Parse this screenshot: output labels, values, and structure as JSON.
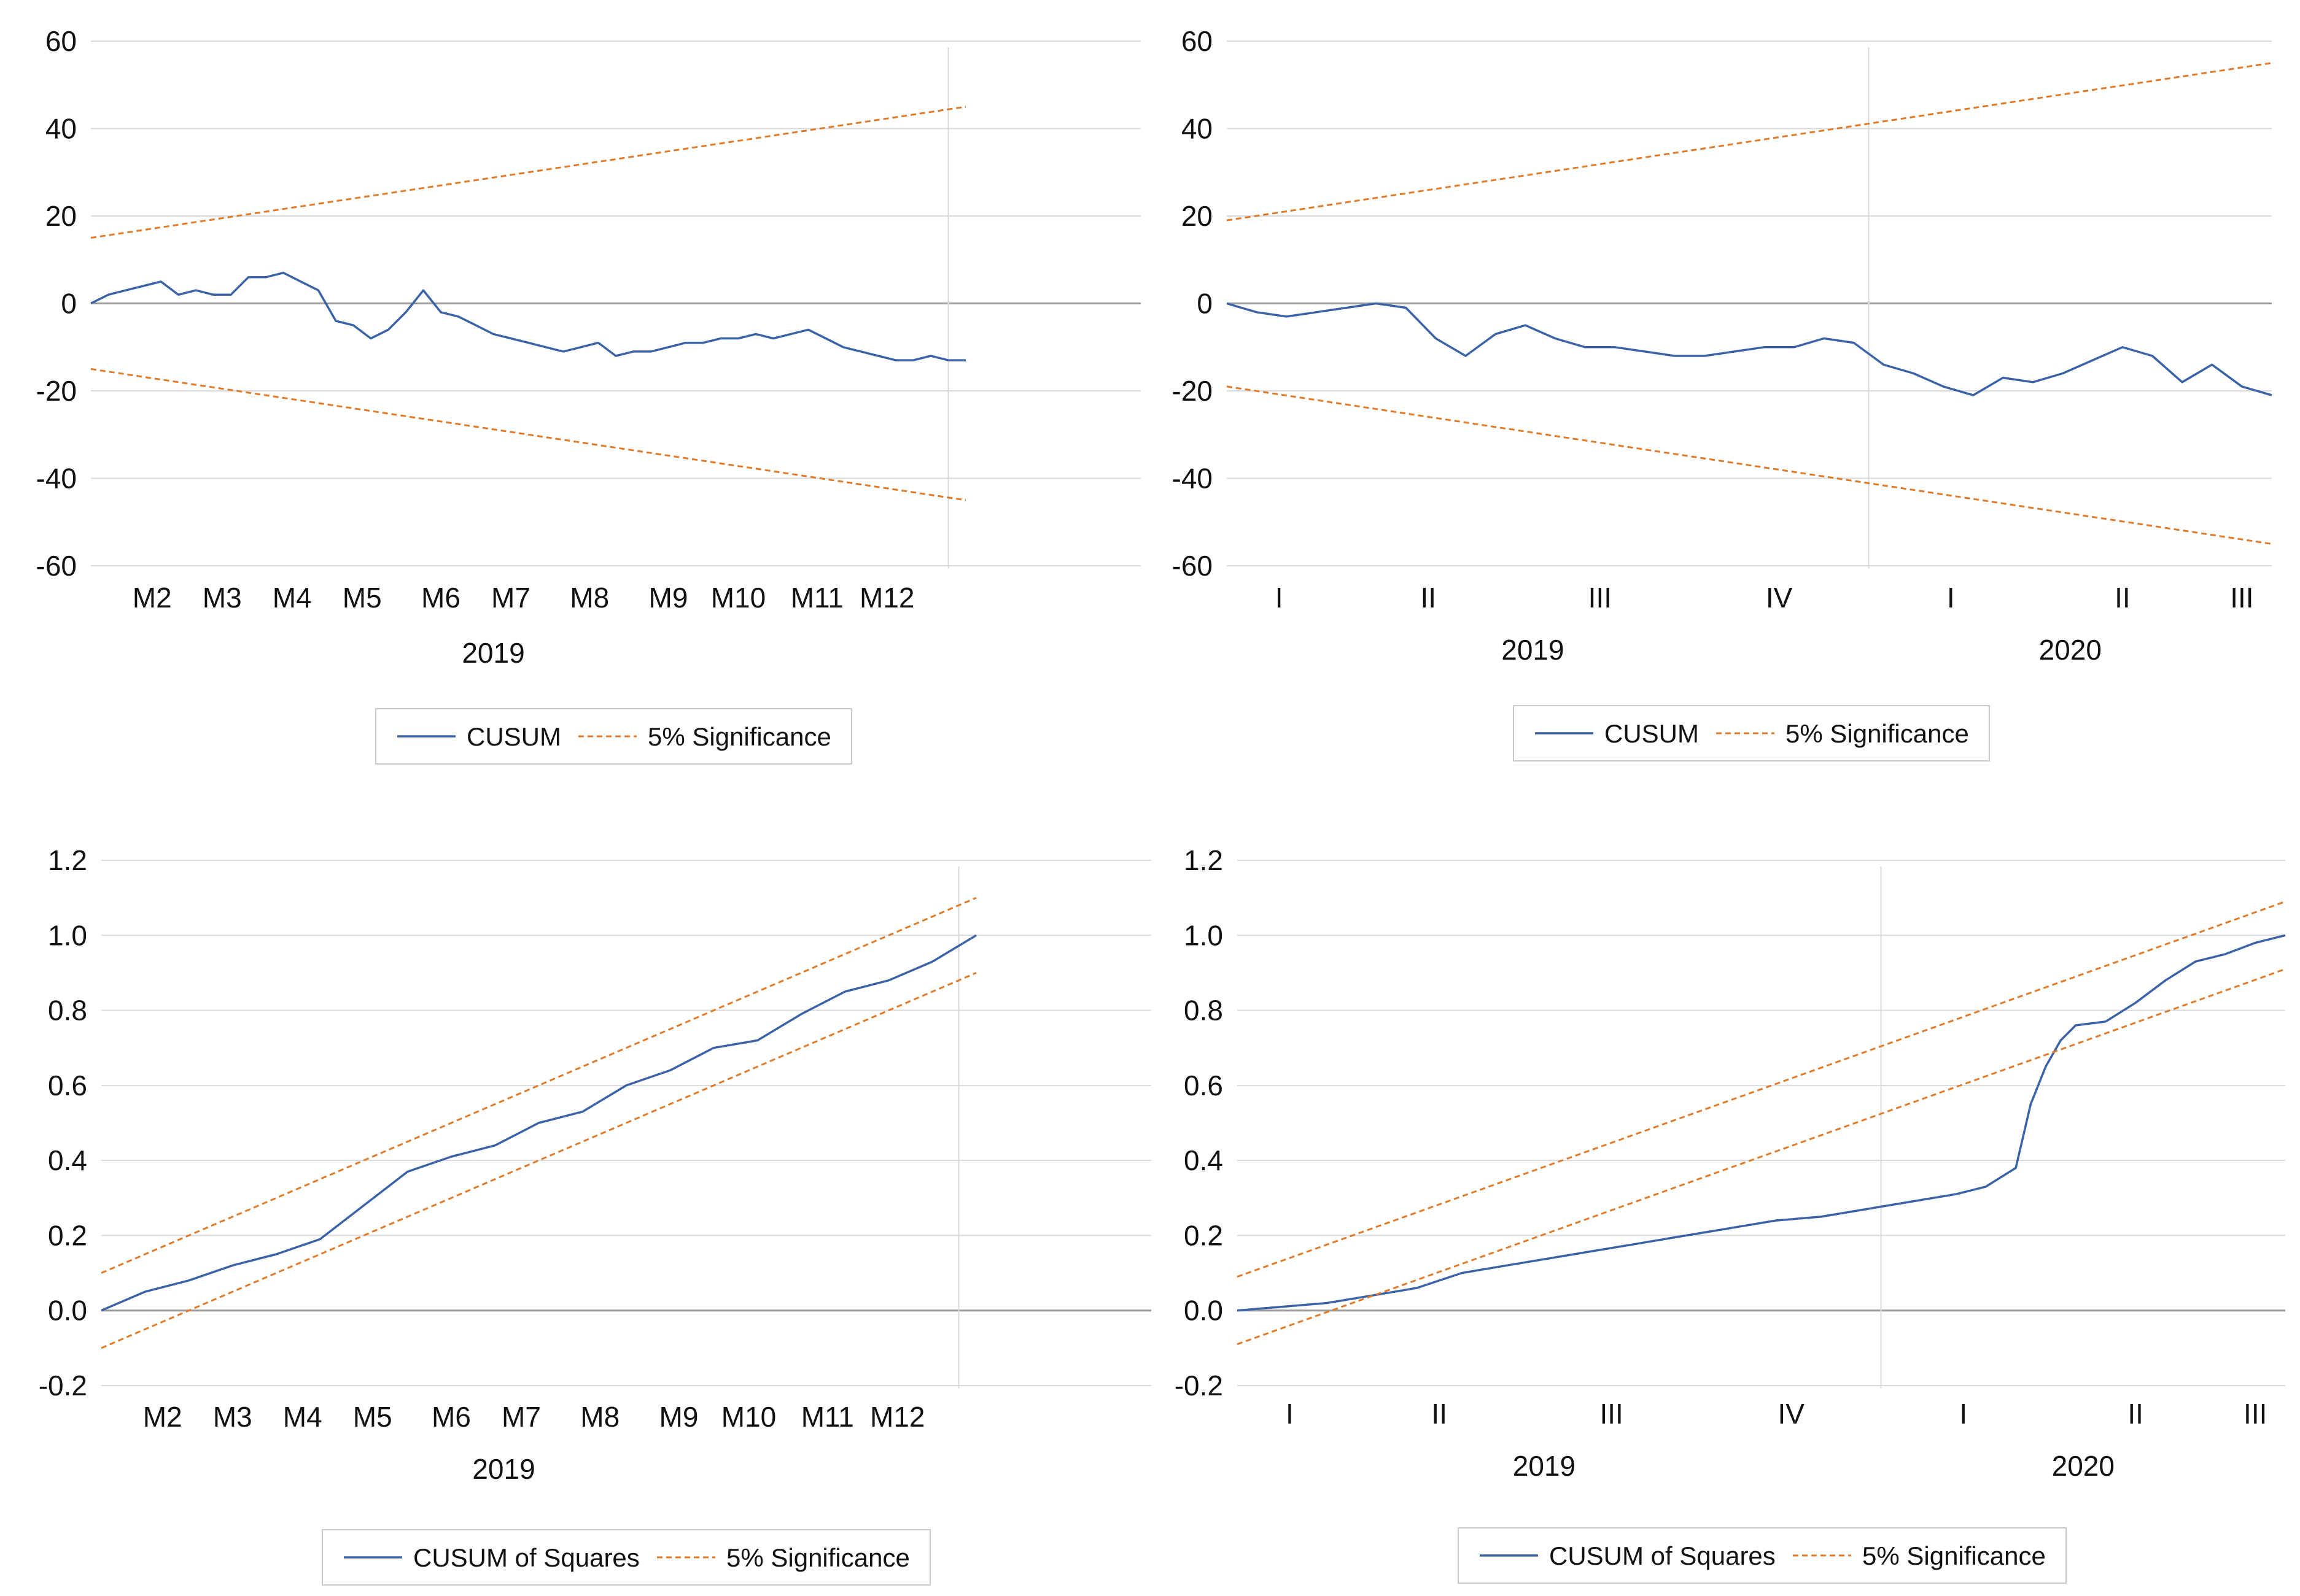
{
  "colors": {
    "cusum": "#3a62a7",
    "bounds": "#e07b2a",
    "grid": "#d9d9d9",
    "zero": "#9a9a9a",
    "legend_border": "#c8c8c8",
    "text": "#111111"
  },
  "chart_data": [
    {
      "type": "line",
      "ylim": [
        -60,
        60
      ],
      "yticks": [
        "60",
        "40",
        "20",
        "0",
        "-20",
        "-40",
        "-60"
      ],
      "ytick_values": [
        60,
        40,
        20,
        0,
        -20,
        -40,
        -60
      ],
      "xlim": [
        0,
        12
      ],
      "xticks": [
        "M2",
        "M3",
        "M4",
        "M5",
        "M6",
        "M7",
        "M8",
        "M9",
        "M10",
        "M11",
        "M12"
      ],
      "xtick_positions": [
        0.7,
        1.5,
        2.3,
        3.1,
        4.0,
        4.8,
        5.7,
        6.6,
        7.4,
        8.3,
        9.1
      ],
      "year_labels": [
        {
          "label": "2019",
          "position": 4.6
        }
      ],
      "x_range": [
        0,
        10
      ],
      "divider_at": 9.8,
      "legend": [
        "CUSUM",
        "5% Significance"
      ],
      "series": [
        {
          "name": "CUSUM",
          "x": [
            0,
            0.2,
            0.4,
            0.6,
            0.8,
            1.0,
            1.2,
            1.4,
            1.6,
            1.8,
            2.0,
            2.2,
            2.4,
            2.6,
            2.8,
            3.0,
            3.2,
            3.4,
            3.6,
            3.8,
            4.0,
            4.2,
            4.4,
            4.6,
            4.8,
            5.0,
            5.2,
            5.4,
            5.6,
            5.8,
            6.0,
            6.2,
            6.4,
            6.6,
            6.8,
            7.0,
            7.2,
            7.4,
            7.6,
            7.8,
            8.0,
            8.2,
            8.4,
            8.6,
            8.8,
            9.0,
            9.2,
            9.4,
            9.6,
            9.8,
            10.0
          ],
          "values": [
            0,
            2,
            3,
            4,
            5,
            2,
            3,
            2,
            2,
            6,
            6,
            7,
            5,
            3,
            -4,
            -5,
            -8,
            -6,
            -2,
            3,
            -2,
            -3,
            -5,
            -7,
            -8,
            -9,
            -10,
            -11,
            -10,
            -9,
            -12,
            -11,
            -11,
            -10,
            -9,
            -9,
            -8,
            -8,
            -7,
            -8,
            -7,
            -6,
            -8,
            -10,
            -11,
            -12,
            -13,
            -13,
            -12,
            -13,
            -13
          ]
        },
        {
          "name": "5% Significance (upper)",
          "x": [
            0,
            10
          ],
          "values": [
            15,
            45
          ]
        },
        {
          "name": "5% Significance (lower)",
          "x": [
            0,
            10
          ],
          "values": [
            -15,
            -45
          ]
        }
      ]
    },
    {
      "type": "line",
      "ylim": [
        -60,
        60
      ],
      "yticks": [
        "60",
        "40",
        "20",
        "0",
        "-20",
        "-40",
        "-60"
      ],
      "ytick_values": [
        60,
        40,
        20,
        0,
        -20,
        -40,
        -60
      ],
      "xlim": [
        0,
        7
      ],
      "xticks": [
        "I",
        "II",
        "III",
        "IV",
        "I",
        "II",
        "III"
      ],
      "xtick_positions": [
        0.35,
        1.35,
        2.5,
        3.7,
        4.85,
        6.0,
        6.8
      ],
      "year_labels": [
        {
          "label": "2019",
          "position": 2.05
        },
        {
          "label": "2020",
          "position": 5.65
        }
      ],
      "x_range": [
        0,
        7
      ],
      "divider_at": 4.3,
      "legend": [
        "CUSUM",
        "5% Significance"
      ],
      "series": [
        {
          "name": "CUSUM",
          "x": [
            0,
            0.2,
            0.4,
            0.6,
            0.8,
            1.0,
            1.2,
            1.4,
            1.6,
            1.8,
            2.0,
            2.2,
            2.4,
            2.6,
            2.8,
            3.0,
            3.2,
            3.4,
            3.6,
            3.8,
            4.0,
            4.2,
            4.4,
            4.6,
            4.8,
            5.0,
            5.2,
            5.4,
            5.6,
            5.8,
            6.0,
            6.2,
            6.4,
            6.6,
            6.8,
            7.0
          ],
          "values": [
            0,
            -2,
            -3,
            -2,
            -1,
            0,
            -1,
            -8,
            -12,
            -7,
            -5,
            -8,
            -10,
            -10,
            -11,
            -12,
            -12,
            -11,
            -10,
            -10,
            -8,
            -9,
            -14,
            -16,
            -19,
            -21,
            -17,
            -18,
            -16,
            -13,
            -10,
            -12,
            -18,
            -14,
            -19,
            -21
          ]
        },
        {
          "name": "5% Significance (upper)",
          "x": [
            0,
            7
          ],
          "values": [
            19,
            55
          ]
        },
        {
          "name": "5% Significance (lower)",
          "x": [
            0,
            7
          ],
          "values": [
            -19,
            -55
          ]
        }
      ]
    },
    {
      "type": "line",
      "ylim": [
        -0.2,
        1.2
      ],
      "yticks": [
        "1.2",
        "1.0",
        "0.8",
        "0.6",
        "0.4",
        "0.2",
        "0.0",
        "-0.2"
      ],
      "ytick_values": [
        1.2,
        1.0,
        0.8,
        0.6,
        0.4,
        0.2,
        0.0,
        -0.2
      ],
      "xlim": [
        0,
        12
      ],
      "xticks": [
        "M2",
        "M3",
        "M4",
        "M5",
        "M6",
        "M7",
        "M8",
        "M9",
        "M10",
        "M11",
        "M12"
      ],
      "xtick_positions": [
        0.7,
        1.5,
        2.3,
        3.1,
        4.0,
        4.8,
        5.7,
        6.6,
        7.4,
        8.3,
        9.1
      ],
      "year_labels": [
        {
          "label": "2019",
          "position": 4.6
        }
      ],
      "x_range": [
        0,
        10
      ],
      "divider_at": 9.8,
      "legend": [
        "CUSUM of Squares",
        "5% Significance"
      ],
      "series": [
        {
          "name": "CUSUM of Squares",
          "x": [
            0,
            0.5,
            1.0,
            1.5,
            2.0,
            2.5,
            3.0,
            3.5,
            4.0,
            4.5,
            5.0,
            5.5,
            6.0,
            6.5,
            7.0,
            7.5,
            8.0,
            8.5,
            9.0,
            9.5,
            10.0
          ],
          "values": [
            0,
            0.05,
            0.08,
            0.12,
            0.15,
            0.19,
            0.28,
            0.37,
            0.41,
            0.44,
            0.5,
            0.53,
            0.6,
            0.64,
            0.7,
            0.72,
            0.79,
            0.85,
            0.88,
            0.93,
            1.0
          ]
        },
        {
          "name": "5% Significance (upper)",
          "x": [
            0,
            10
          ],
          "values": [
            0.1,
            1.1
          ]
        },
        {
          "name": "5% Significance (lower)",
          "x": [
            0,
            10
          ],
          "values": [
            -0.1,
            0.9
          ]
        }
      ]
    },
    {
      "type": "line",
      "ylim": [
        -0.2,
        1.2
      ],
      "yticks": [
        "1.2",
        "1.0",
        "0.8",
        "0.6",
        "0.4",
        "0.2",
        "0.0",
        "-0.2"
      ],
      "ytick_values": [
        1.2,
        1.0,
        0.8,
        0.6,
        0.4,
        0.2,
        0.0,
        -0.2
      ],
      "xlim": [
        0,
        7
      ],
      "xticks": [
        "I",
        "II",
        "III",
        "IV",
        "I",
        "II",
        "III"
      ],
      "xtick_positions": [
        0.35,
        1.35,
        2.5,
        3.7,
        4.85,
        6.0,
        6.8
      ],
      "year_labels": [
        {
          "label": "2019",
          "position": 2.05
        },
        {
          "label": "2020",
          "position": 5.65
        }
      ],
      "x_range": [
        0,
        7
      ],
      "divider_at": 4.3,
      "legend": [
        "CUSUM of Squares",
        "5% Significance"
      ],
      "series": [
        {
          "name": "CUSUM of Squares",
          "x": [
            0,
            0.3,
            0.6,
            0.9,
            1.2,
            1.5,
            1.8,
            2.1,
            2.4,
            2.7,
            3.0,
            3.3,
            3.6,
            3.9,
            4.2,
            4.5,
            4.8,
            5.0,
            5.2,
            5.3,
            5.4,
            5.5,
            5.6,
            5.8,
            6.0,
            6.2,
            6.4,
            6.6,
            6.8,
            7.0
          ],
          "values": [
            0,
            0.01,
            0.02,
            0.04,
            0.06,
            0.1,
            0.12,
            0.14,
            0.16,
            0.18,
            0.2,
            0.22,
            0.24,
            0.25,
            0.27,
            0.29,
            0.31,
            0.33,
            0.38,
            0.55,
            0.65,
            0.72,
            0.76,
            0.77,
            0.82,
            0.88,
            0.93,
            0.95,
            0.98,
            1.0
          ]
        },
        {
          "name": "5% Significance (upper)",
          "x": [
            0,
            7
          ],
          "values": [
            0.09,
            1.09
          ]
        },
        {
          "name": "5% Significance (lower)",
          "x": [
            0,
            7
          ],
          "values": [
            -0.09,
            0.91
          ]
        }
      ]
    }
  ]
}
